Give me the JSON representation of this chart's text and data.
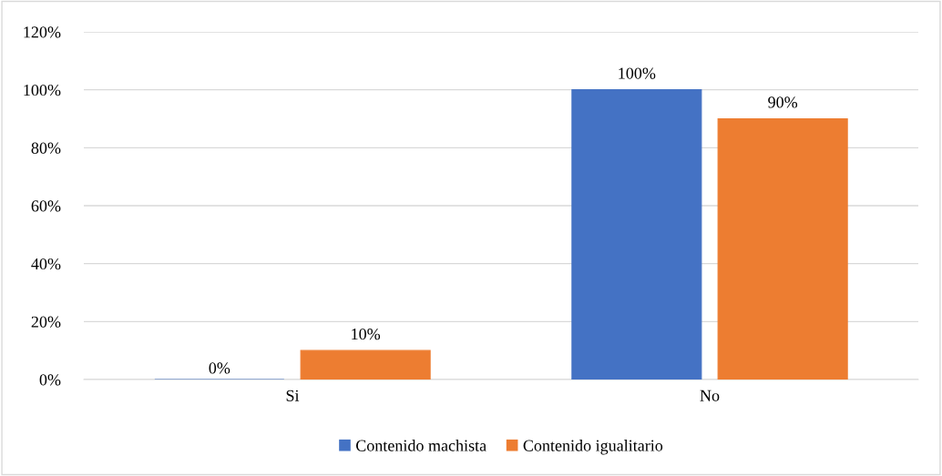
{
  "chart_data": {
    "type": "bar",
    "categories": [
      "Si",
      "No"
    ],
    "series": [
      {
        "name": "Contenido machista",
        "color": "#4472c4",
        "values": [
          0,
          100
        ],
        "value_labels": [
          "0%",
          "100%"
        ]
      },
      {
        "name": "Contenido igualitario",
        "color": "#ed7d31",
        "values": [
          10,
          90
        ],
        "value_labels": [
          "10%",
          "90%"
        ]
      }
    ],
    "ylim": [
      0,
      120
    ],
    "yticks": [
      {
        "value": 0,
        "label": "0%"
      },
      {
        "value": 20,
        "label": "20%"
      },
      {
        "value": 40,
        "label": "40%"
      },
      {
        "value": 60,
        "label": "60%"
      },
      {
        "value": 80,
        "label": "80%"
      },
      {
        "value": 100,
        "label": "100%"
      },
      {
        "value": 120,
        "label": "120%"
      }
    ],
    "grid": "y",
    "legend": "bottom"
  }
}
